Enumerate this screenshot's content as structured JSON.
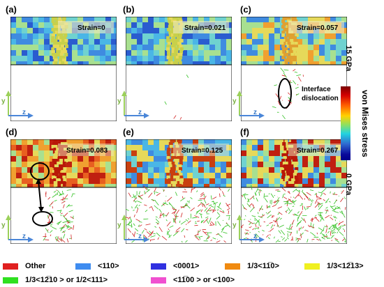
{
  "panels": [
    {
      "label": "(a)",
      "strain": "Strain=0"
    },
    {
      "label": "(b)",
      "strain": "Strain=0.021"
    },
    {
      "label": "(c)",
      "strain": "Strain=0.057"
    },
    {
      "label": "(d)",
      "strain": "Strain=0.083"
    },
    {
      "label": "(e)",
      "strain": "Strain=0.125"
    },
    {
      "label": "(f)",
      "strain": "Strain=0.267"
    }
  ],
  "axis": {
    "y": "y",
    "z": "z"
  },
  "annotation": {
    "line1": "Interface",
    "line2": "dislocation"
  },
  "colorbar": {
    "max_label": "15 GPa",
    "min_label": "0 GPa",
    "title": "von Mises stress"
  },
  "legend": [
    {
      "label": "Other",
      "color": "#e02020"
    },
    {
      "label": "<110>",
      "color": "#3f8cf0"
    },
    {
      "label": "<0001>",
      "color": "#3030e0"
    },
    {
      "label": "1/3<11̅0>",
      "color": "#f08a10"
    },
    {
      "label": "1/3<12̅13>",
      "color": "#f0f020"
    },
    {
      "label": "1/3<12̅10 > or 1/2<111>",
      "color": "#30e020"
    },
    {
      "label": "<11̅00 > or <100>",
      "color": "#f050d0"
    }
  ]
}
